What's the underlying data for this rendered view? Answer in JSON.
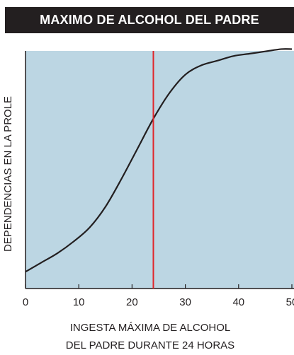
{
  "header": {
    "title": "MAXIMO DE ALCOHOL DEL PADRE"
  },
  "colors": {
    "plot_background": "#bcd6e3",
    "curve": "#231f20",
    "reference_line": "#e0262b",
    "title_bar": "#231f20"
  },
  "chart_data": {
    "type": "line",
    "title": "MAXIMO DE ALCOHOL DEL PADRE",
    "ylabel": "DEPENDENCIAS EN LA PROLE",
    "xlabel_lines": [
      "INGESTA MÁXIMA DE ALCOHOL",
      "DEL PADRE DURANTE 24 HORAS"
    ],
    "xlim": [
      0,
      50
    ],
    "ylim": [
      0,
      1
    ],
    "y_ticks_shown": false,
    "x_ticks": [
      0,
      10,
      20,
      30,
      40,
      50
    ],
    "x_tick_labels": [
      "0",
      "10",
      "20",
      "30",
      "40",
      "50"
    ],
    "grid": false,
    "legend": "none",
    "reference_line": {
      "x": 24
    },
    "series": [
      {
        "x": [
          0,
          3,
          6,
          9,
          12,
          15,
          18,
          21,
          24,
          27,
          30,
          33,
          36,
          39,
          42,
          45,
          48,
          50
        ],
        "y": [
          0.06,
          0.1,
          0.14,
          0.19,
          0.25,
          0.34,
          0.46,
          0.59,
          0.72,
          0.83,
          0.91,
          0.95,
          0.97,
          0.99,
          1.0,
          1.01,
          1.02,
          1.02
        ]
      }
    ]
  }
}
